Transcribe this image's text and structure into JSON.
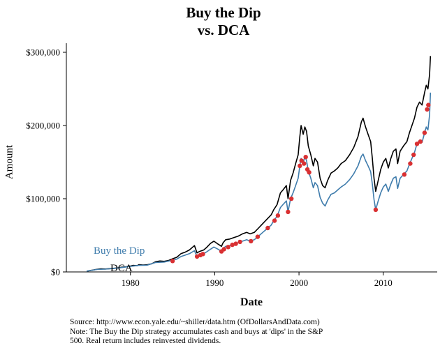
{
  "header": {
    "title_line1": "Buy the Dip",
    "title_line2": "vs. DCA"
  },
  "footer": {
    "lines": [
      "Source:  http://www.econ.yale.edu/~shiller/data.htm (OfDollarsAndData.com)",
      "Note: The Buy the Dip strategy accumulates cash and buys at 'dips' in the S&P",
      "500. Real return includes reinvested dividends."
    ]
  },
  "colors": {
    "dca": "#000000",
    "buy_the_dip": "#3f7cac",
    "dip_marker": "#d93032"
  },
  "chart_data": {
    "type": "line",
    "title": "Buy the Dip vs. DCA",
    "xlabel": "Date",
    "ylabel": "Amount",
    "x_range": [
      1972.4,
      2016.4
    ],
    "y_range": [
      0,
      300000
    ],
    "grid": false,
    "legend_position": "annotated-on-plot",
    "x_ticks": [
      {
        "value": 1980,
        "label": "1980"
      },
      {
        "value": 1990,
        "label": "1990"
      },
      {
        "value": 2000,
        "label": "2000"
      },
      {
        "value": 2010,
        "label": "2010"
      }
    ],
    "y_ticks": [
      {
        "value": 0,
        "label": "$0"
      },
      {
        "value": 100000,
        "label": "$100,000"
      },
      {
        "value": 200000,
        "label": "$200,000"
      },
      {
        "value": 300000,
        "label": "$300,000"
      }
    ],
    "annotations": [
      {
        "text": "Buy the Dip",
        "color": "#3f7cac",
        "near_x": 1981,
        "near_y": 20000
      },
      {
        "text": "DCA",
        "color": "#000000",
        "near_x": 1983,
        "near_y": 5000
      }
    ],
    "series": [
      {
        "name": "DCA",
        "color": "#000000",
        "points": [
          [
            1974.8,
            1000
          ],
          [
            1975.5,
            2500
          ],
          [
            1976,
            3500
          ],
          [
            1976.5,
            4200
          ],
          [
            1977,
            4000
          ],
          [
            1977.5,
            4500
          ],
          [
            1978,
            5000
          ],
          [
            1978.5,
            5500
          ],
          [
            1979,
            6500
          ],
          [
            1979.5,
            7000
          ],
          [
            1980,
            8000
          ],
          [
            1980.3,
            9000
          ],
          [
            1980.8,
            8500
          ],
          [
            1981,
            10000
          ],
          [
            1981.5,
            9500
          ],
          [
            1982,
            9800
          ],
          [
            1982.5,
            11000
          ],
          [
            1983,
            14000
          ],
          [
            1983.5,
            15000
          ],
          [
            1984,
            14500
          ],
          [
            1984.5,
            15500
          ],
          [
            1985,
            18000
          ],
          [
            1985.5,
            20000
          ],
          [
            1986,
            25000
          ],
          [
            1986.5,
            27000
          ],
          [
            1987,
            30000
          ],
          [
            1987.6,
            36000
          ],
          [
            1987.9,
            26000
          ],
          [
            1988.2,
            28000
          ],
          [
            1988.7,
            30000
          ],
          [
            1989,
            33000
          ],
          [
            1989.5,
            39000
          ],
          [
            1989.9,
            42000
          ],
          [
            1990.4,
            38000
          ],
          [
            1990.8,
            35000
          ],
          [
            1991,
            40000
          ],
          [
            1991.3,
            44000
          ],
          [
            1991.8,
            45000
          ],
          [
            1992.3,
            47000
          ],
          [
            1992.8,
            49000
          ],
          [
            1993.3,
            52000
          ],
          [
            1993.8,
            54000
          ],
          [
            1994.2,
            52000
          ],
          [
            1994.7,
            54000
          ],
          [
            1995.2,
            60000
          ],
          [
            1995.7,
            66000
          ],
          [
            1996.2,
            72000
          ],
          [
            1996.7,
            78000
          ],
          [
            1997,
            85000
          ],
          [
            1997.4,
            92000
          ],
          [
            1997.8,
            108000
          ],
          [
            1998.1,
            112000
          ],
          [
            1998.5,
            118000
          ],
          [
            1998.7,
            100000
          ],
          [
            1999,
            125000
          ],
          [
            1999.3,
            135000
          ],
          [
            1999.6,
            148000
          ],
          [
            1999.9,
            160000
          ],
          [
            2000.1,
            185000
          ],
          [
            2000.25,
            200000
          ],
          [
            2000.5,
            188000
          ],
          [
            2000.7,
            198000
          ],
          [
            2000.9,
            192000
          ],
          [
            2001.1,
            172000
          ],
          [
            2001.4,
            160000
          ],
          [
            2001.7,
            145000
          ],
          [
            2001.9,
            155000
          ],
          [
            2002.2,
            150000
          ],
          [
            2002.5,
            128000
          ],
          [
            2002.8,
            118000
          ],
          [
            2003.1,
            115000
          ],
          [
            2003.4,
            125000
          ],
          [
            2003.8,
            135000
          ],
          [
            2004.2,
            138000
          ],
          [
            2004.6,
            142000
          ],
          [
            2005,
            148000
          ],
          [
            2005.5,
            152000
          ],
          [
            2006,
            160000
          ],
          [
            2006.5,
            170000
          ],
          [
            2007,
            185000
          ],
          [
            2007.4,
            205000
          ],
          [
            2007.6,
            210000
          ],
          [
            2007.9,
            198000
          ],
          [
            2008.2,
            188000
          ],
          [
            2008.5,
            178000
          ],
          [
            2008.7,
            155000
          ],
          [
            2008.9,
            128000
          ],
          [
            2009.1,
            110000
          ],
          [
            2009.4,
            125000
          ],
          [
            2009.7,
            140000
          ],
          [
            2010,
            150000
          ],
          [
            2010.3,
            155000
          ],
          [
            2010.6,
            142000
          ],
          [
            2010.9,
            155000
          ],
          [
            2011.2,
            165000
          ],
          [
            2011.5,
            168000
          ],
          [
            2011.7,
            148000
          ],
          [
            2012,
            165000
          ],
          [
            2012.4,
            172000
          ],
          [
            2012.8,
            178000
          ],
          [
            2013.1,
            190000
          ],
          [
            2013.4,
            200000
          ],
          [
            2013.7,
            210000
          ],
          [
            2014,
            225000
          ],
          [
            2014.3,
            232000
          ],
          [
            2014.6,
            228000
          ],
          [
            2014.9,
            245000
          ],
          [
            2015.1,
            255000
          ],
          [
            2015.3,
            250000
          ],
          [
            2015.5,
            270000
          ],
          [
            2015.6,
            295000
          ]
        ]
      },
      {
        "name": "Buy the Dip",
        "color": "#3f7cac",
        "points": [
          [
            1974.8,
            1000
          ],
          [
            1975.5,
            2400
          ],
          [
            1976,
            3300
          ],
          [
            1977,
            3800
          ],
          [
            1978,
            4700
          ],
          [
            1979,
            6000
          ],
          [
            1980,
            7500
          ],
          [
            1981,
            9000
          ],
          [
            1982,
            9200
          ],
          [
            1983,
            13000
          ],
          [
            1984,
            13500
          ],
          [
            1985,
            16000
          ],
          [
            1985.5,
            17500
          ],
          [
            1986,
            21000
          ],
          [
            1986.5,
            23000
          ],
          [
            1987,
            25000
          ],
          [
            1987.6,
            29000
          ],
          [
            1987.9,
            21000
          ],
          [
            1988.2,
            23000
          ],
          [
            1988.7,
            25000
          ],
          [
            1989,
            27000
          ],
          [
            1989.5,
            31000
          ],
          [
            1989.9,
            34000
          ],
          [
            1990.4,
            31000
          ],
          [
            1990.8,
            28000
          ],
          [
            1991,
            32000
          ],
          [
            1991.3,
            35000
          ],
          [
            1991.8,
            36000
          ],
          [
            1992.3,
            38000
          ],
          [
            1992.8,
            40000
          ],
          [
            1993.3,
            42000
          ],
          [
            1993.8,
            44000
          ],
          [
            1994.2,
            42000
          ],
          [
            1994.7,
            44000
          ],
          [
            1995.2,
            49000
          ],
          [
            1995.7,
            54000
          ],
          [
            1996.2,
            59000
          ],
          [
            1996.7,
            64000
          ],
          [
            1997,
            70000
          ],
          [
            1997.4,
            76000
          ],
          [
            1997.8,
            88000
          ],
          [
            1998.1,
            92000
          ],
          [
            1998.5,
            97000
          ],
          [
            1998.7,
            82000
          ],
          [
            1999,
            100000
          ],
          [
            1999.3,
            108000
          ],
          [
            1999.6,
            118000
          ],
          [
            1999.9,
            128000
          ],
          [
            2000.1,
            145000
          ],
          [
            2000.25,
            155000
          ],
          [
            2000.5,
            148000
          ],
          [
            2000.7,
            158000
          ],
          [
            2000.9,
            152000
          ],
          [
            2001.1,
            138000
          ],
          [
            2001.4,
            128000
          ],
          [
            2001.7,
            115000
          ],
          [
            2001.9,
            122000
          ],
          [
            2002.2,
            118000
          ],
          [
            2002.5,
            102000
          ],
          [
            2002.8,
            94000
          ],
          [
            2003.1,
            90000
          ],
          [
            2003.4,
            98000
          ],
          [
            2003.8,
            106000
          ],
          [
            2004.2,
            108000
          ],
          [
            2004.6,
            112000
          ],
          [
            2005,
            116000
          ],
          [
            2005.5,
            120000
          ],
          [
            2006,
            126000
          ],
          [
            2006.5,
            134000
          ],
          [
            2007,
            145000
          ],
          [
            2007.4,
            158000
          ],
          [
            2007.6,
            161000
          ],
          [
            2007.9,
            152000
          ],
          [
            2008.2,
            145000
          ],
          [
            2008.5,
            137000
          ],
          [
            2008.7,
            120000
          ],
          [
            2008.9,
            99000
          ],
          [
            2009.1,
            85000
          ],
          [
            2009.4,
            97000
          ],
          [
            2009.7,
            108000
          ],
          [
            2010,
            116000
          ],
          [
            2010.3,
            120000
          ],
          [
            2010.6,
            110000
          ],
          [
            2010.9,
            120000
          ],
          [
            2011.2,
            128000
          ],
          [
            2011.5,
            130000
          ],
          [
            2011.7,
            114000
          ],
          [
            2012,
            128000
          ],
          [
            2012.4,
            133000
          ],
          [
            2012.8,
            138000
          ],
          [
            2013.1,
            147000
          ],
          [
            2013.4,
            155000
          ],
          [
            2013.7,
            163000
          ],
          [
            2014,
            175000
          ],
          [
            2014.3,
            180000
          ],
          [
            2014.6,
            177000
          ],
          [
            2014.9,
            190000
          ],
          [
            2015.1,
            198000
          ],
          [
            2015.3,
            194000
          ],
          [
            2015.5,
            215000
          ],
          [
            2015.6,
            245000
          ]
        ]
      }
    ],
    "dip_purchases": {
      "label": "dip buy points",
      "color": "#d93032",
      "points": [
        [
          1985,
          15000
        ],
        [
          1987.9,
          21000
        ],
        [
          1988.3,
          23000
        ],
        [
          1988.6,
          24500
        ],
        [
          1990.8,
          28000
        ],
        [
          1991.1,
          31000
        ],
        [
          1991.6,
          34000
        ],
        [
          1992.1,
          37000
        ],
        [
          1992.5,
          38500
        ],
        [
          1993,
          41000
        ],
        [
          1994.3,
          42000
        ],
        [
          1995.1,
          48000
        ],
        [
          1996.3,
          60000
        ],
        [
          1997.1,
          70000
        ],
        [
          1997.5,
          77000
        ],
        [
          1998.7,
          82000
        ],
        [
          1999.1,
          100000
        ],
        [
          2000.1,
          145000
        ],
        [
          2000.3,
          152000
        ],
        [
          2000.6,
          148000
        ],
        [
          2000.8,
          157000
        ],
        [
          2001,
          140000
        ],
        [
          2001.2,
          136000
        ],
        [
          2009.1,
          85000
        ],
        [
          2012.5,
          133000
        ],
        [
          2013.2,
          148000
        ],
        [
          2013.6,
          160000
        ],
        [
          2014,
          175000
        ],
        [
          2014.4,
          178000
        ],
        [
          2014.9,
          190000
        ],
        [
          2015.2,
          222000
        ],
        [
          2015.35,
          228000
        ]
      ]
    }
  }
}
